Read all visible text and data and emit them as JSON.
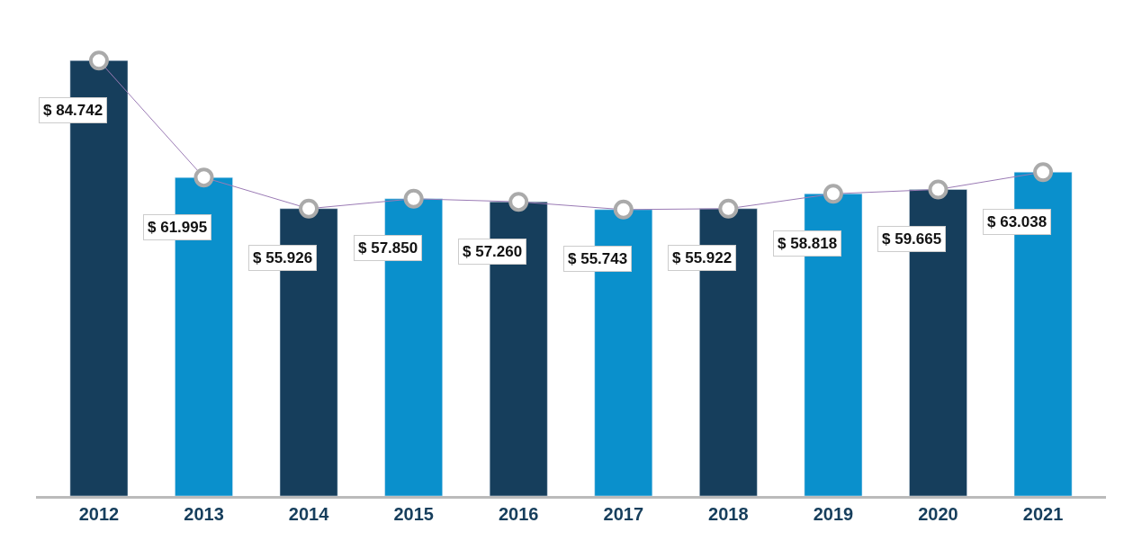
{
  "chart_data": {
    "type": "bar",
    "categories": [
      "2012",
      "2013",
      "2014",
      "2015",
      "2016",
      "2017",
      "2018",
      "2019",
      "2020",
      "2021"
    ],
    "series": [
      {
        "values": [
          84.742,
          61.995,
          55.926,
          57.85,
          57.26,
          55.743,
          55.922,
          58.818,
          59.665,
          63.038
        ],
        "colors": [
          "#163e5c",
          "#0a90cc",
          "#163e5c",
          "#0a90cc",
          "#163e5c",
          "#0a90cc",
          "#163e5c",
          "#0a90cc",
          "#163e5c",
          "#0a90cc"
        ],
        "value_labels": [
          "$ 84.742",
          "$ 61.995",
          "$ 55.926",
          "$ 57.850",
          "$ 57.260",
          "$ 55.743",
          "$ 55.922",
          "$ 58.818",
          "$ 59.665",
          "$ 63.038"
        ]
      },
      {
        "type": "line",
        "color": "#9b7bb5",
        "values": [
          84.742,
          61.995,
          55.926,
          57.85,
          57.26,
          55.743,
          55.922,
          58.818,
          59.665,
          63.038
        ]
      }
    ],
    "tick_labels": "x",
    "marker": "circle"
  }
}
